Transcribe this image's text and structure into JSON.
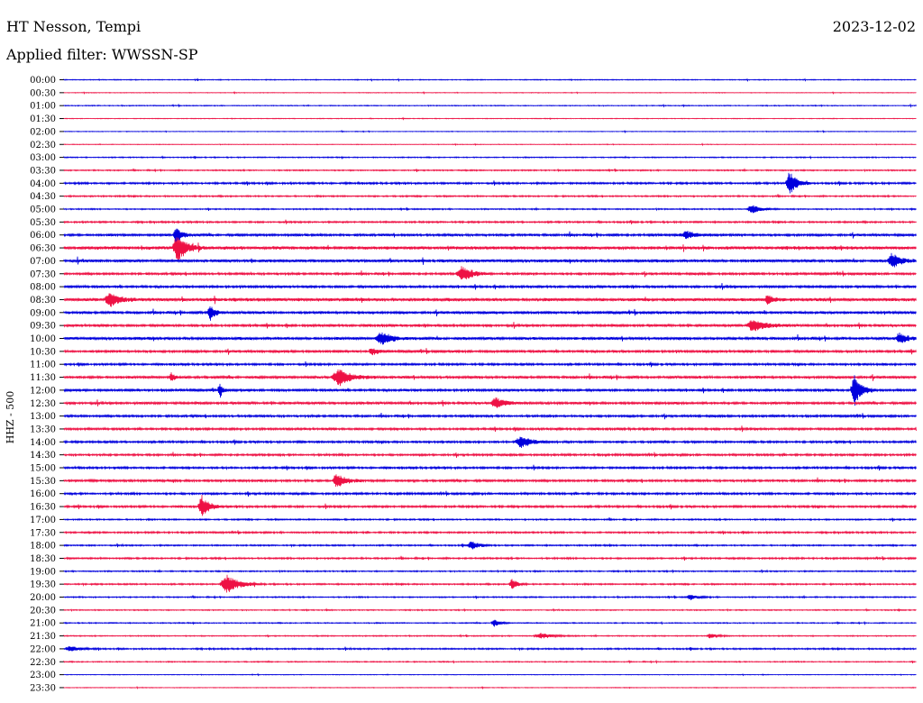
{
  "header": {
    "station": "HT Nesson, Tempi",
    "date": "2023-12-02",
    "filter": "Applied filter: WWSSN-SP"
  },
  "chart_data": {
    "type": "line",
    "title": "HT Nesson, Tempi",
    "ylabel": "HHZ - 500",
    "colors": {
      "odd": "#0000dd",
      "even": "#ee1144"
    },
    "rows": [
      "00:00",
      "00:30",
      "01:00",
      "01:30",
      "02:00",
      "02:30",
      "03:00",
      "03:30",
      "04:00",
      "04:30",
      "05:00",
      "05:30",
      "06:00",
      "06:30",
      "07:00",
      "07:30",
      "08:00",
      "08:30",
      "09:00",
      "09:30",
      "10:00",
      "10:30",
      "11:00",
      "11:30",
      "12:00",
      "12:30",
      "13:00",
      "13:30",
      "14:00",
      "14:30",
      "15:00",
      "15:30",
      "16:00",
      "16:30",
      "17:00",
      "17:30",
      "18:00",
      "18:30",
      "19:00",
      "19:30",
      "20:00",
      "20:30",
      "21:00",
      "21:30",
      "22:00",
      "22:30",
      "23:00",
      "23:30"
    ],
    "noise": [
      0.4,
      0.3,
      0.4,
      0.3,
      0.3,
      0.3,
      0.5,
      0.6,
      0.9,
      0.7,
      0.6,
      0.8,
      1.2,
      1.6,
      1.4,
      1.1,
      1.2,
      1.6,
      1.3,
      1.2,
      1.4,
      1.2,
      1.0,
      1.3,
      1.2,
      1.2,
      1.1,
      1.1,
      1.0,
      1.0,
      1.0,
      1.1,
      1.0,
      1.0,
      0.7,
      0.8,
      0.7,
      0.8,
      0.6,
      0.7,
      0.6,
      0.5,
      0.5,
      0.5,
      0.7,
      0.5,
      0.3,
      0.3
    ],
    "events": [
      {
        "row": 8,
        "x": 876,
        "amp": 13,
        "width": 8
      },
      {
        "row": 10,
        "x": 834,
        "amp": 5,
        "width": 10
      },
      {
        "row": 12,
        "x": 195,
        "amp": 11,
        "width": 6
      },
      {
        "row": 13,
        "x": 197,
        "amp": 14,
        "width": 10
      },
      {
        "row": 12,
        "x": 762,
        "amp": 4,
        "width": 12
      },
      {
        "row": 14,
        "x": 990,
        "amp": 8,
        "width": 10
      },
      {
        "row": 15,
        "x": 513,
        "amp": 8,
        "width": 12
      },
      {
        "row": 17,
        "x": 122,
        "amp": 9,
        "width": 10
      },
      {
        "row": 17,
        "x": 852,
        "amp": 6,
        "width": 6
      },
      {
        "row": 18,
        "x": 233,
        "amp": 8,
        "width": 6
      },
      {
        "row": 19,
        "x": 836,
        "amp": 7,
        "width": 14
      },
      {
        "row": 20,
        "x": 423,
        "amp": 7,
        "width": 12
      },
      {
        "row": 20,
        "x": 998,
        "amp": 6,
        "width": 8
      },
      {
        "row": 21,
        "x": 413,
        "amp": 4,
        "width": 6
      },
      {
        "row": 23,
        "x": 376,
        "amp": 9,
        "width": 14
      },
      {
        "row": 23,
        "x": 190,
        "amp": 5,
        "width": 4
      },
      {
        "row": 24,
        "x": 948,
        "amp": 16,
        "width": 8
      },
      {
        "row": 24,
        "x": 244,
        "amp": 8,
        "width": 3
      },
      {
        "row": 25,
        "x": 550,
        "amp": 6,
        "width": 10
      },
      {
        "row": 28,
        "x": 578,
        "amp": 7,
        "width": 12
      },
      {
        "row": 31,
        "x": 374,
        "amp": 8,
        "width": 10
      },
      {
        "row": 33,
        "x": 224,
        "amp": 12,
        "width": 8
      },
      {
        "row": 36,
        "x": 523,
        "amp": 5,
        "width": 8
      },
      {
        "row": 39,
        "x": 252,
        "amp": 10,
        "width": 14
      },
      {
        "row": 39,
        "x": 568,
        "amp": 6,
        "width": 6
      },
      {
        "row": 40,
        "x": 766,
        "amp": 3,
        "width": 8
      },
      {
        "row": 42,
        "x": 548,
        "amp": 4,
        "width": 6
      },
      {
        "row": 43,
        "x": 600,
        "amp": 3,
        "width": 14
      },
      {
        "row": 43,
        "x": 788,
        "amp": 3,
        "width": 8
      },
      {
        "row": 44,
        "x": 78,
        "amp": 3,
        "width": 10
      }
    ]
  }
}
